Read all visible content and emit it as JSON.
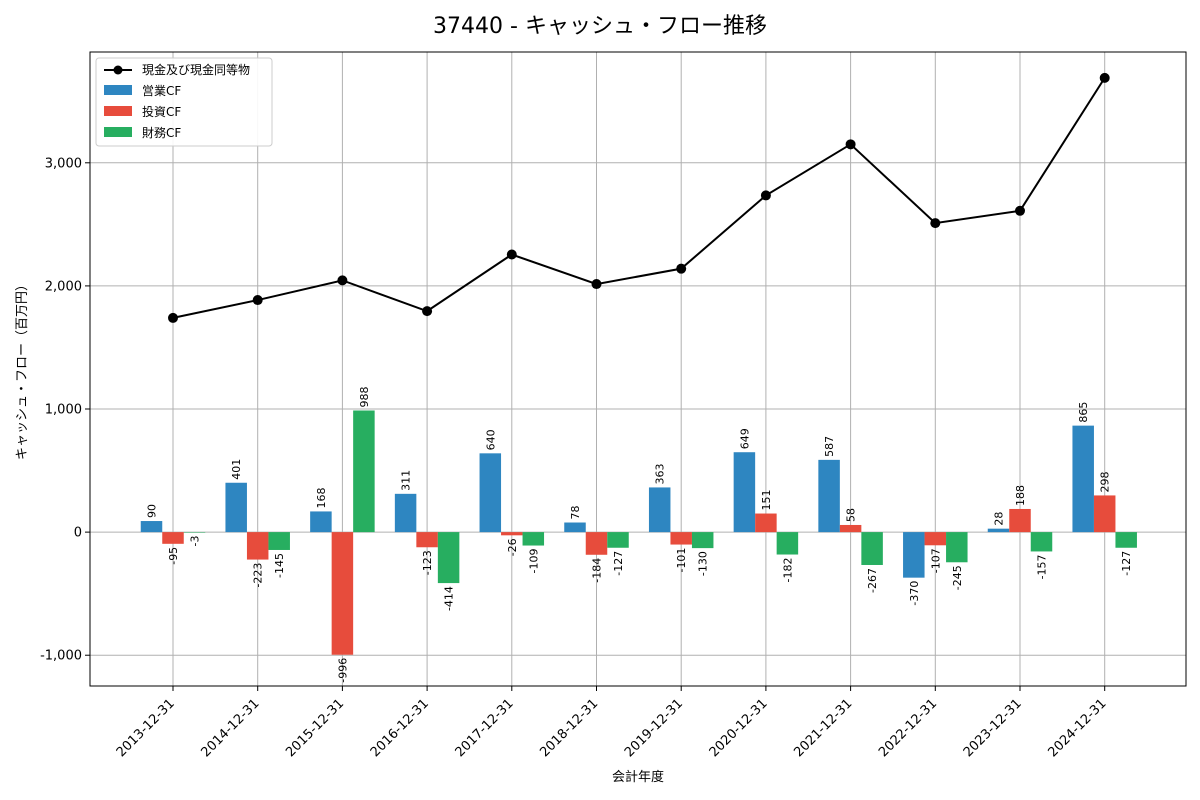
{
  "chart_data": {
    "type": "bar",
    "title": "37440 - キャッシュ・フロー推移",
    "xlabel": "会計年度",
    "ylabel": "キャッシュ・フロー（百万円）",
    "ylim": [
      -1250,
      3900
    ],
    "yticks": [
      -1000,
      0,
      1000,
      2000,
      3000
    ],
    "ytick_labels": [
      "-1,000",
      "0",
      "1,000",
      "2,000",
      "3,000"
    ],
    "grid": true,
    "legend_position": "top-left",
    "categories": [
      "2013-12-31",
      "2014-12-31",
      "2015-12-31",
      "2016-12-31",
      "2017-12-31",
      "2018-12-31",
      "2019-12-31",
      "2020-12-31",
      "2021-12-31",
      "2022-12-31",
      "2023-12-31",
      "2024-12-31"
    ],
    "series": [
      {
        "name": "営業CF",
        "kind": "bar",
        "color": "#2e86c1",
        "label_color": "#000000",
        "values": [
          90,
          401,
          168,
          311,
          640,
          78,
          363,
          649,
          587,
          -370,
          28,
          865
        ]
      },
      {
        "name": "投資CF",
        "kind": "bar",
        "color": "#e74c3c",
        "label_color": "#000000",
        "values": [
          -95,
          -223,
          -996,
          -123,
          -26,
          -184,
          -101,
          151,
          58,
          -107,
          188,
          298
        ]
      },
      {
        "name": "財務CF",
        "kind": "bar",
        "color": "#27ae60",
        "label_color": "#000000",
        "values": [
          -3,
          -145,
          988,
          -414,
          -109,
          -127,
          -130,
          -182,
          -267,
          -245,
          -157,
          -127
        ]
      }
    ],
    "line": {
      "name": "現金及び現金同等物",
      "color": "#000000",
      "values": [
        1740,
        1885,
        2045,
        1795,
        2255,
        2015,
        2140,
        2735,
        3150,
        2510,
        2610,
        3690
      ]
    },
    "legend": [
      "現金及び現金同等物",
      "営業CF",
      "投資CF",
      "財務CF"
    ]
  }
}
